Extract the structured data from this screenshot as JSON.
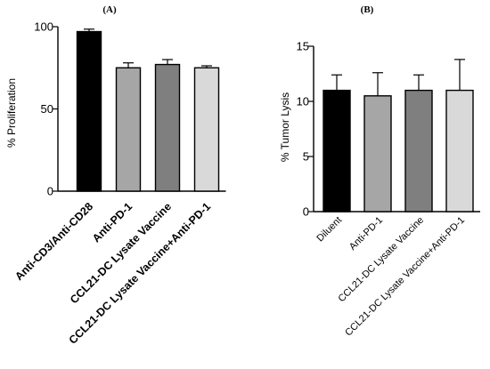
{
  "chart_data": [
    {
      "panel": "(A)",
      "type": "bar",
      "ylabel": "% Proliferation",
      "ylim": [
        0,
        100
      ],
      "yticks": [
        "0",
        "50",
        "100"
      ],
      "categories": [
        "Anti-CD3/Anti-CD28",
        "Anti-PD-1",
        "CCL21-DC Lysate Vaccine",
        "CCL21-DC Lysate Vaccine+Anti-PD-1"
      ],
      "values": [
        97,
        75,
        77,
        75
      ],
      "errors": [
        1.5,
        3,
        3,
        1.2
      ],
      "colors": [
        "#000000",
        "#a6a6a6",
        "#7f7f7f",
        "#d9d9d9"
      ]
    },
    {
      "panel": "(B)",
      "type": "bar",
      "ylabel": "% Tumor Lysis",
      "ylim": [
        0,
        15
      ],
      "yticks": [
        "0",
        "5",
        "10",
        "15"
      ],
      "categories": [
        "Diluent",
        "Anti-PD-1",
        "CCL21-DC Lysate Vaccine",
        "CCL21-DC Lysate Vaccine+Anti-PD-1"
      ],
      "values": [
        11,
        10.5,
        11,
        11
      ],
      "errors": [
        1.4,
        2.1,
        1.4,
        2.8
      ],
      "colors": [
        "#000000",
        "#a6a6a6",
        "#7f7f7f",
        "#d9d9d9"
      ]
    }
  ]
}
